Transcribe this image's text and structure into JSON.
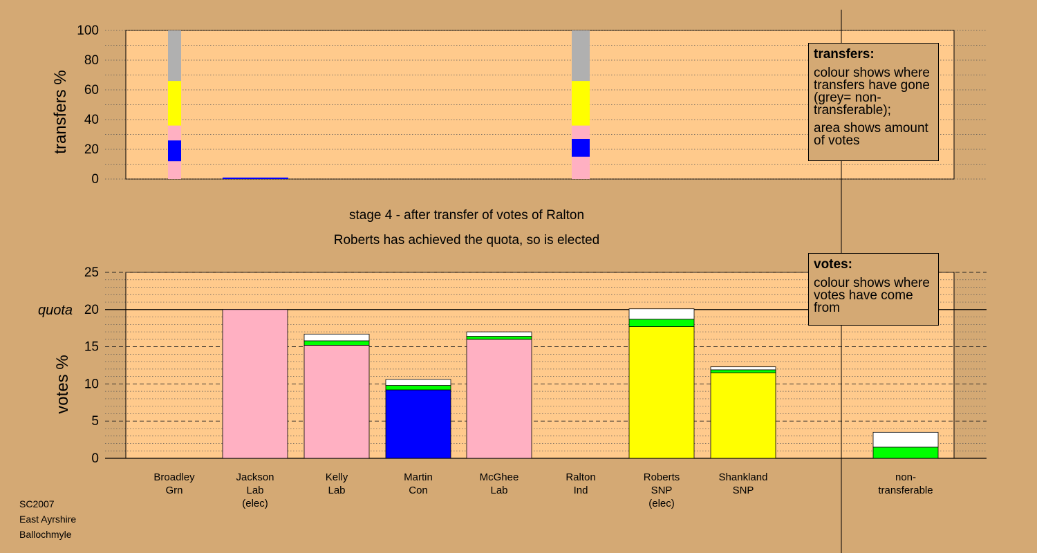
{
  "colors": {
    "background": "#d4a974",
    "plot_bg": "#ffca8c",
    "Lab": "#ffb0c2",
    "Con": "#0000ff",
    "SNP": "#ffff00",
    "Grn": "#00ff00",
    "Ind": "#ffffff",
    "non_transferable": "#b0b0b0"
  },
  "stage_title": "stage 4 - after transfer of votes of Ralton",
  "stage_subtitle": "Roberts has achieved the quota, so is elected",
  "legend_transfers": {
    "title": "transfers:",
    "line1": "colour shows where transfers have gone (grey= non-transferable);",
    "line2": "area shows amount of votes"
  },
  "legend_votes": {
    "title": "votes:",
    "line1": "colour shows where votes have come from"
  },
  "footer": {
    "line1": "SC2007",
    "line2": "East Ayrshire",
    "line3": "Ballochmyle"
  },
  "chart_data": [
    {
      "type": "bar",
      "name": "transfers",
      "ylabel": "transfers %",
      "ylim": [
        0,
        100
      ],
      "yticks": [
        0,
        20,
        40,
        60,
        80,
        100
      ],
      "grid": "dotted every 10",
      "categories": [
        "Broadley Grn",
        "Jackson Lab (elec)",
        "Kelly Lab",
        "Martin Con",
        "McGhee Lab",
        "Ralton Ind",
        "Roberts SNP (elec)",
        "Shankland SNP"
      ],
      "columns": [
        {
          "candidate": "Broadley Grn",
          "width_hint": "narrow",
          "segments": [
            {
              "party": "Lab",
              "from": 0,
              "to": 12
            },
            {
              "party": "Con",
              "from": 12,
              "to": 26
            },
            {
              "party": "Lab",
              "from": 26,
              "to": 36
            },
            {
              "party": "SNP",
              "from": 36,
              "to": 66
            },
            {
              "party": "non_transferable",
              "from": 66,
              "to": 100
            }
          ]
        },
        {
          "candidate": "Jackson Lab (elec)",
          "width_hint": "full",
          "segments": [
            {
              "party": "Con",
              "from": 0,
              "to": 1
            }
          ]
        },
        {
          "candidate": "Roberts SNP (elec)",
          "width_hint": "narrow",
          "segments": [
            {
              "party": "Lab",
              "from": 0,
              "to": 15
            },
            {
              "party": "Con",
              "from": 15,
              "to": 27
            },
            {
              "party": "Lab",
              "from": 27,
              "to": 36
            },
            {
              "party": "SNP",
              "from": 36,
              "to": 66
            },
            {
              "party": "non_transferable",
              "from": 66,
              "to": 100
            }
          ]
        }
      ]
    },
    {
      "type": "bar",
      "name": "votes",
      "ylabel": "votes %",
      "ylim": [
        0,
        25
      ],
      "yticks": [
        0,
        5,
        10,
        15,
        20,
        25
      ],
      "quota": 20,
      "quota_label": "quota",
      "grid": "dashed every 5, dotted every 1",
      "categories": [
        {
          "line1": "Broadley",
          "line2": "Grn",
          "line3": ""
        },
        {
          "line1": "Jackson",
          "line2": "Lab",
          "line3": "(elec)"
        },
        {
          "line1": "Kelly",
          "line2": "Lab",
          "line3": ""
        },
        {
          "line1": "Martin",
          "line2": "Con",
          "line3": ""
        },
        {
          "line1": "McGhee",
          "line2": "Lab",
          "line3": ""
        },
        {
          "line1": "Ralton",
          "line2": "Ind",
          "line3": ""
        },
        {
          "line1": "Roberts",
          "line2": "SNP",
          "line3": "(elec)"
        },
        {
          "line1": "Shankland",
          "line2": "SNP",
          "line3": ""
        },
        {
          "line1": "",
          "line2": "",
          "line3": ""
        },
        {
          "line1": "non-",
          "line2": "transferable",
          "line3": ""
        }
      ],
      "bars": [
        {
          "candidate": "Broadley",
          "segments": []
        },
        {
          "candidate": "Jackson",
          "segments": [
            {
              "party": "Lab",
              "value": 20.0
            }
          ]
        },
        {
          "candidate": "Kelly",
          "segments": [
            {
              "party": "Lab",
              "value": 15.2
            },
            {
              "party": "Grn",
              "value": 0.6
            },
            {
              "party": "Ind",
              "value": 0.9
            }
          ]
        },
        {
          "candidate": "Martin",
          "segments": [
            {
              "party": "Con",
              "value": 9.2
            },
            {
              "party": "Grn",
              "value": 0.6
            },
            {
              "party": "Ind",
              "value": 0.8
            }
          ]
        },
        {
          "candidate": "McGhee",
          "segments": [
            {
              "party": "Lab",
              "value": 16.0
            },
            {
              "party": "Grn",
              "value": 0.4
            },
            {
              "party": "Ind",
              "value": 0.6
            }
          ]
        },
        {
          "candidate": "Ralton",
          "segments": []
        },
        {
          "candidate": "Roberts",
          "segments": [
            {
              "party": "SNP",
              "value": 17.7
            },
            {
              "party": "Grn",
              "value": 1.0
            },
            {
              "party": "Ind",
              "value": 1.4
            }
          ]
        },
        {
          "candidate": "Shankland",
          "segments": [
            {
              "party": "SNP",
              "value": 11.5
            },
            {
              "party": "Grn",
              "value": 0.4
            },
            {
              "party": "Ind",
              "value": 0.4
            }
          ]
        },
        {
          "candidate": "",
          "segments": []
        },
        {
          "candidate": "non-transferable",
          "segments": [
            {
              "party": "Grn",
              "value": 1.5
            },
            {
              "party": "Ind",
              "value": 2.0
            }
          ]
        }
      ]
    }
  ]
}
